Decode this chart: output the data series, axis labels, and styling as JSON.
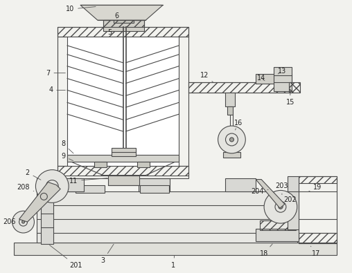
{
  "bg_color": "#f2f2ee",
  "line_color": "#4a4a4a",
  "lw": 0.8,
  "fig_w": 5.08,
  "fig_h": 3.95,
  "dpi": 100
}
